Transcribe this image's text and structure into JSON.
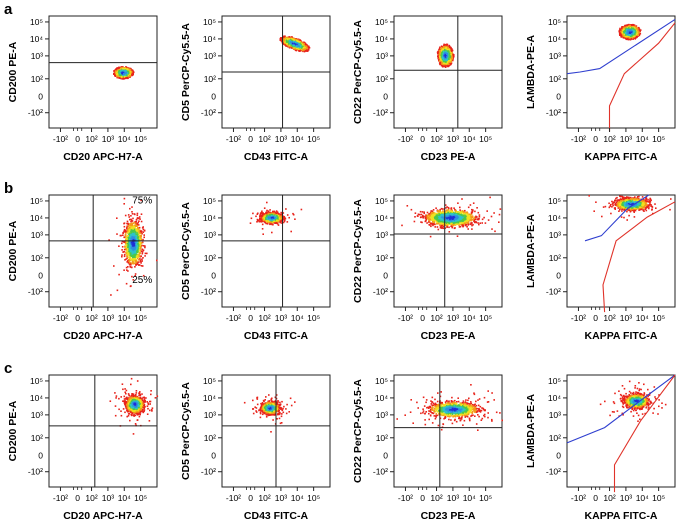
{
  "figure": {
    "rows": [
      {
        "label": "a",
        "panels": [
          {
            "xlabel": "CD20 APC-H7-A",
            "ylabel": "CD200 PE-A",
            "hline": 2.55,
            "vline": null,
            "density": "dense",
            "blobs": [
              {
                "cx": 3.2,
                "cy": 2.0,
                "rx": 0.55,
                "ry": 0.32
              }
            ],
            "quadrant_labels": []
          },
          {
            "xlabel": "CD43 FITC-A",
            "ylabel": "CD5 PerCP-Cy5.5-A",
            "hline": 2.0,
            "vline": 2.4,
            "density": "dense",
            "blobs": [
              {
                "cx": 3.1,
                "cy": 3.7,
                "rx": 0.85,
                "ry": 0.3,
                "rot": -20
              }
            ],
            "quadrant_labels": []
          },
          {
            "xlabel": "CD23 PE-A",
            "ylabel": "CD22 PerCP-Cy5.5-A",
            "hline": 2.1,
            "vline": 2.6,
            "density": "dense",
            "blobs": [
              {
                "cx": 1.8,
                "cy": 3.0,
                "rx": 0.45,
                "ry": 0.6
              }
            ],
            "quadrant_labels": []
          },
          {
            "xlabel": "KAPPA FITC-A",
            "ylabel": "LAMBDA-PE-A",
            "density": "dense",
            "blobs": [
              {
                "cx": 2.5,
                "cy": 4.4,
                "rx": 0.6,
                "ry": 0.4
              }
            ],
            "gates": [
              {
                "color": "#2f3fcf",
                "points": [
                  [
                    -1.3,
                    1.9
                  ],
                  [
                    -0.5,
                    2.0
                  ],
                  [
                    0.7,
                    2.2
                  ],
                  [
                    5.3,
                    5.1
                  ]
                ]
              },
              {
                "color": "#e0332a",
                "points": [
                  [
                    1.3,
                    -1.5
                  ],
                  [
                    1.3,
                    0.0
                  ],
                  [
                    2.2,
                    1.9
                  ],
                  [
                    4.3,
                    3.7
                  ],
                  [
                    5.3,
                    4.9
                  ]
                ]
              }
            ],
            "quadrant_labels": []
          }
        ]
      },
      {
        "label": "b",
        "panels": [
          {
            "xlabel": "CD20 APC-H7-A",
            "ylabel": "CD200 PE-A",
            "hline": 2.6,
            "vline": 1.4,
            "density": "medium",
            "blobs": [
              {
                "cx": 3.8,
                "cy": 2.5,
                "rx": 0.55,
                "ry": 1.3
              }
            ],
            "quadrant_labels": [
              {
                "text": "75%",
                "x": 4.4,
                "y": 4.8
              },
              {
                "text": "25%",
                "x": 4.4,
                "y": 0.1
              }
            ]
          },
          {
            "xlabel": "CD43 FITC-A",
            "ylabel": "CD5 PerCP-Cy5.5-A",
            "hline": 2.6,
            "vline": 2.4,
            "density": "medium",
            "blobs": [
              {
                "cx": 1.7,
                "cy": 4.0,
                "rx": 0.65,
                "ry": 0.3
              }
            ],
            "quadrant_labels": []
          },
          {
            "xlabel": "CD23 PE-A",
            "ylabel": "CD22 PerCP-Cy5.5-A",
            "hline": 3.0,
            "vline": 1.8,
            "density": "medium",
            "blobs": [
              {
                "cx": 2.1,
                "cy": 4.0,
                "rx": 1.55,
                "ry": 0.5
              }
            ],
            "quadrant_labels": []
          },
          {
            "xlabel": "KAPPA FITC-A",
            "ylabel": "LAMBDA-PE-A",
            "density": "medium",
            "blobs": [
              {
                "cx": 2.6,
                "cy": 4.8,
                "rx": 1.0,
                "ry": 0.35
              }
            ],
            "gates": [
              {
                "color": "#2f3fcf",
                "points": [
                  [
                    -0.2,
                    2.6
                  ],
                  [
                    0.8,
                    2.9
                  ],
                  [
                    2.4,
                    4.5
                  ],
                  [
                    3.7,
                    5.3
                  ]
                ]
              },
              {
                "color": "#e0332a",
                "points": [
                  [
                    1.0,
                    -1.6
                  ],
                  [
                    0.9,
                    0.0
                  ],
                  [
                    1.7,
                    2.6
                  ],
                  [
                    3.6,
                    4.0
                  ],
                  [
                    5.3,
                    4.9
                  ]
                ]
              }
            ],
            "quadrant_labels": []
          }
        ]
      },
      {
        "label": "c",
        "panels": [
          {
            "xlabel": "CD20 APC-H7-A",
            "ylabel": "CD200 PE-A",
            "hline": 2.3,
            "vline": 1.5,
            "density": "sparse",
            "blobs": [
              {
                "cx": 3.9,
                "cy": 3.6,
                "rx": 0.55,
                "ry": 0.5
              }
            ],
            "quadrant_labels": []
          },
          {
            "xlabel": "CD43 FITC-A",
            "ylabel": "CD5 PerCP-Cy5.5-A",
            "hline": 2.3,
            "vline": 2.0,
            "density": "sparse",
            "blobs": [
              {
                "cx": 1.6,
                "cy": 3.4,
                "rx": 0.55,
                "ry": 0.35
              }
            ],
            "quadrant_labels": []
          },
          {
            "xlabel": "CD23 PE-A",
            "ylabel": "CD22 PerCP-Cy5.5-A",
            "hline": 2.2,
            "vline": 1.5,
            "density": "sparse",
            "blobs": [
              {
                "cx": 2.3,
                "cy": 3.3,
                "rx": 1.45,
                "ry": 0.45
              }
            ],
            "quadrant_labels": []
          },
          {
            "xlabel": "KAPPA FITC-A",
            "ylabel": "LAMBDA-PE-A",
            "density": "sparse",
            "blobs": [
              {
                "cx": 2.9,
                "cy": 3.8,
                "rx": 0.7,
                "ry": 0.4
              }
            ],
            "gates": [
              {
                "color": "#2f3fcf",
                "points": [
                  [
                    -1.3,
                    1.3
                  ],
                  [
                    1.0,
                    2.2
                  ],
                  [
                    3.2,
                    3.8
                  ],
                  [
                    5.3,
                    5.3
                  ]
                ]
              },
              {
                "color": "#e0332a",
                "points": [
                  [
                    1.6,
                    -1.6
                  ],
                  [
                    1.6,
                    0.0
                  ],
                  [
                    3.2,
                    2.6
                  ],
                  [
                    5.3,
                    5.3
                  ]
                ]
              }
            ],
            "quadrant_labels": []
          }
        ]
      }
    ]
  },
  "chart_data": {
    "type": "scatter",
    "description": "Flow cytometry density dot plots, 3 rows (a, b, c) x 4 panels, biexponential axes",
    "axis_range": [
      -1.3,
      5.3
    ],
    "x_ticks": [
      "-10²",
      "10²",
      "10³",
      "10⁴",
      "10⁵"
    ],
    "y_ticks": [
      "10⁵",
      "10⁴",
      "10³",
      "10²",
      "-10²"
    ],
    "x_tick_values": [
      -0.6,
      1.3,
      2.3,
      3.3,
      4.3
    ],
    "y_tick_values": [
      4.95,
      3.95,
      2.95,
      1.6,
      -0.4
    ],
    "y_ticks_extra": [
      "0"
    ],
    "rows": [
      "a",
      "b",
      "c"
    ],
    "xlabels": [
      "CD20 APC-H7-A",
      "CD43 FITC-A",
      "CD23 PE-A",
      "KAPPA FITC-A"
    ],
    "ylabels": [
      "CD200 PE-A",
      "CD5 PerCP-Cy5.5-A",
      "CD22 PerCP-Cy5.5-A",
      "LAMBDA-PE-A"
    ],
    "annotations": [
      {
        "row": "b",
        "panel": 1,
        "text": "75%",
        "quadrant": "upper-right"
      },
      {
        "row": "b",
        "panel": 1,
        "text": "25%",
        "quadrant": "lower-right"
      }
    ]
  }
}
